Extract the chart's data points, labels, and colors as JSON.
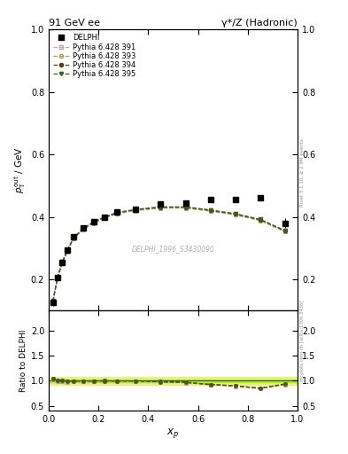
{
  "title_left": "91 GeV ee",
  "title_right": "γ*/Z (Hadronic)",
  "ylabel_main": "p$^{\\rm out}_{\\rm T}$ / GeV",
  "ylabel_ratio": "Ratio to DELPHI",
  "xlabel": "$x_p$",
  "watermark": "DELPHI_1996_S3430090",
  "rivet_label": "Rivet 3.1.10, ≥ 2.9M events",
  "mcplots_label": "mcplots.cern.ch [arXiv:1306.3436]",
  "data_x": [
    0.017,
    0.035,
    0.055,
    0.075,
    0.1,
    0.14,
    0.18,
    0.225,
    0.275,
    0.35,
    0.45,
    0.55,
    0.65,
    0.75,
    0.85,
    0.95
  ],
  "data_y": [
    0.125,
    0.205,
    0.255,
    0.295,
    0.335,
    0.365,
    0.385,
    0.4,
    0.415,
    0.425,
    0.44,
    0.445,
    0.455,
    0.455,
    0.46,
    0.38
  ],
  "data_yerr": [
    0.01,
    0.005,
    0.005,
    0.004,
    0.003,
    0.003,
    0.003,
    0.003,
    0.003,
    0.003,
    0.003,
    0.004,
    0.004,
    0.005,
    0.008,
    0.015
  ],
  "py391_y": [
    0.128,
    0.202,
    0.252,
    0.289,
    0.33,
    0.36,
    0.38,
    0.396,
    0.41,
    0.42,
    0.428,
    0.428,
    0.418,
    0.406,
    0.388,
    0.352
  ],
  "py393_y": [
    0.129,
    0.203,
    0.253,
    0.29,
    0.331,
    0.361,
    0.381,
    0.397,
    0.411,
    0.421,
    0.429,
    0.429,
    0.419,
    0.407,
    0.389,
    0.353
  ],
  "py394_y": [
    0.13,
    0.205,
    0.256,
    0.293,
    0.333,
    0.363,
    0.383,
    0.399,
    0.413,
    0.423,
    0.431,
    0.431,
    0.421,
    0.409,
    0.391,
    0.355
  ],
  "py395_y": [
    0.131,
    0.206,
    0.257,
    0.294,
    0.334,
    0.364,
    0.384,
    0.4,
    0.414,
    0.424,
    0.432,
    0.432,
    0.422,
    0.41,
    0.392,
    0.356
  ],
  "color_391": "#c8a0a0",
  "color_393": "#a0a060",
  "color_394": "#604010",
  "color_395": "#406020",
  "ylim_main": [
    0.1,
    1.0
  ],
  "yticks_main": [
    0.2,
    0.4,
    0.6,
    0.8,
    1.0
  ],
  "ylim_ratio": [
    0.4,
    2.4
  ],
  "yticks_ratio": [
    0.5,
    1.0,
    1.5,
    2.0
  ],
  "xlim": [
    0.0,
    1.0
  ],
  "ratio_band_outer_lo": 0.92,
  "ratio_band_outer_hi": 1.08,
  "ratio_band_inner_lo": 0.97,
  "ratio_band_inner_hi": 1.03,
  "ratio_band_color_inner": "#b0e830",
  "ratio_band_color_outer": "#e8f080",
  "bg_color": "#ffffff"
}
